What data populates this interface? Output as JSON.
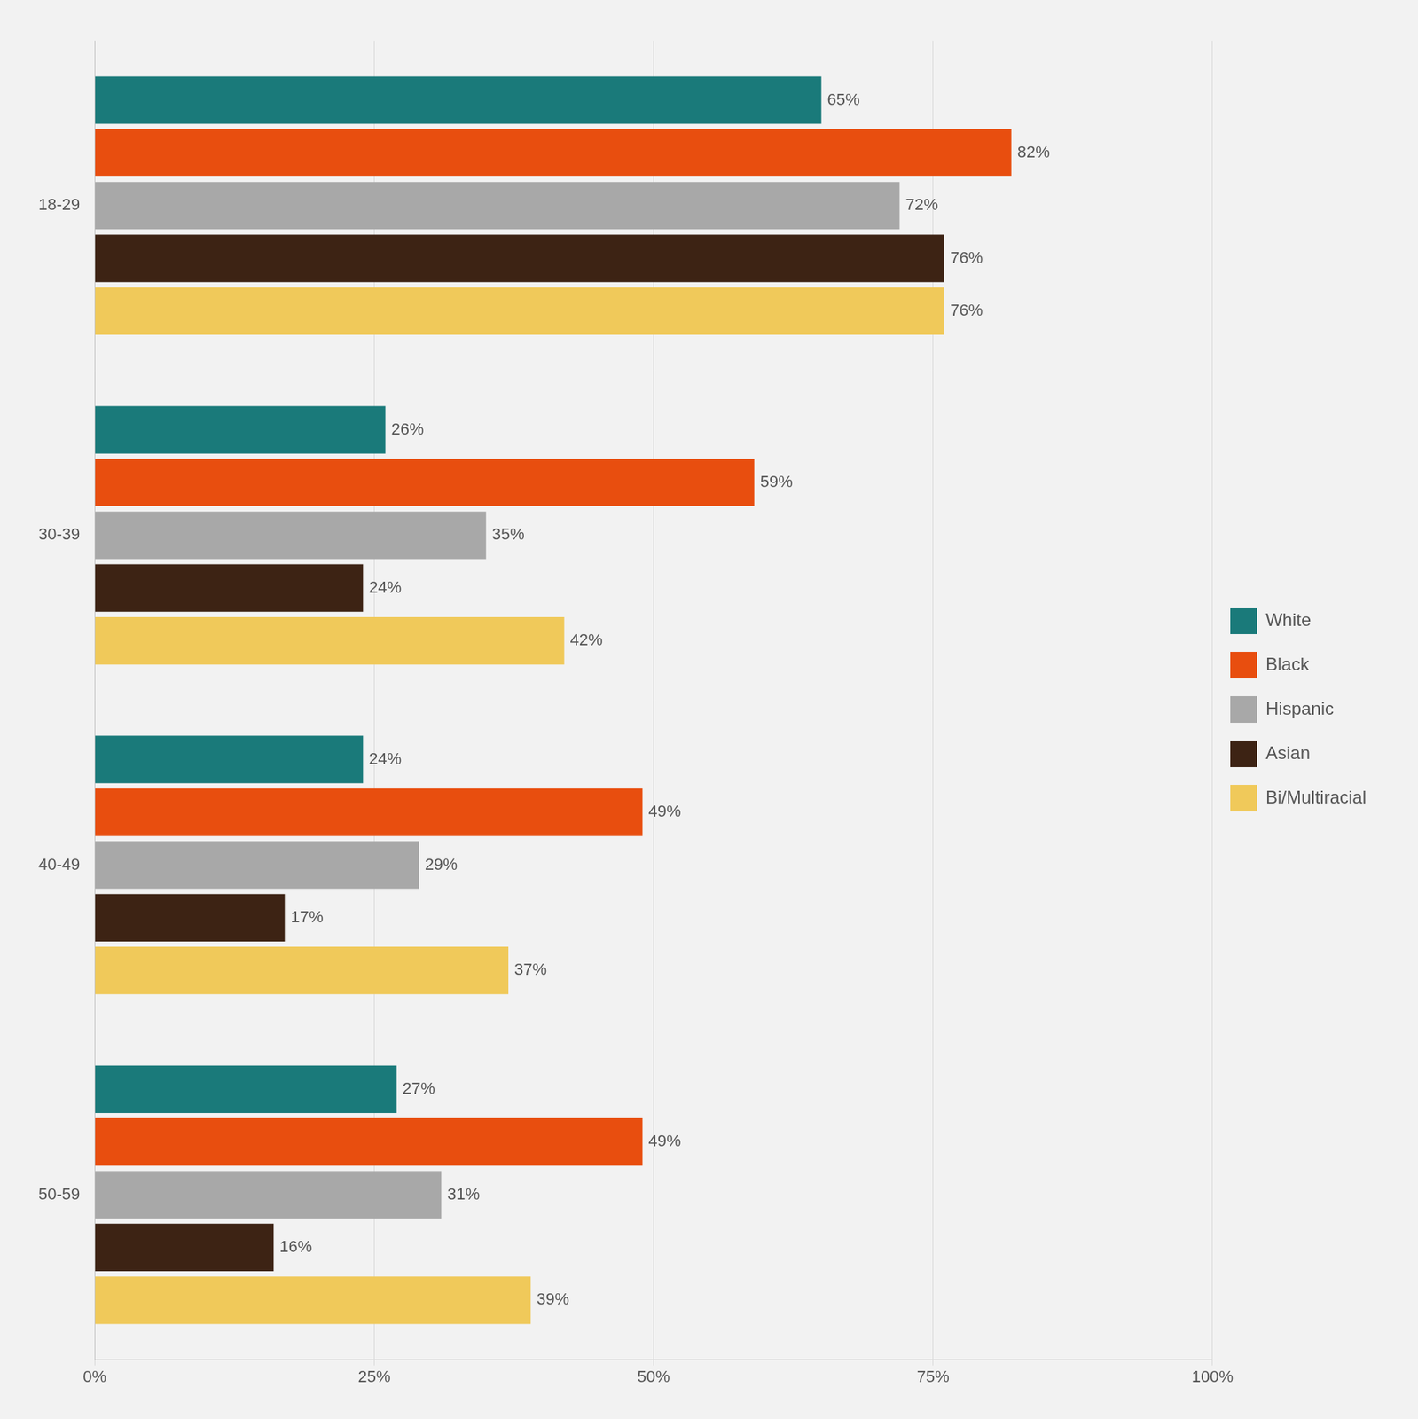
{
  "chart_data": {
    "type": "bar",
    "orientation": "horizontal",
    "categories": [
      "18-29",
      "30-39",
      "40-49",
      "50-59"
    ],
    "series": [
      {
        "name": "White",
        "color": "#1a7a7a",
        "values": [
          65,
          26,
          24,
          27
        ],
        "value_labels": [
          "65%",
          "26%",
          "24%",
          "27%"
        ]
      },
      {
        "name": "Black",
        "color": "#e84e0f",
        "values": [
          82,
          59,
          49,
          49
        ],
        "value_labels": [
          "82%",
          "59%",
          "49%",
          "49%"
        ]
      },
      {
        "name": "Hispanic",
        "color": "#a8a8a8",
        "values": [
          72,
          35,
          29,
          31
        ],
        "value_labels": [
          "72%",
          "35%",
          "29%",
          "31%"
        ]
      },
      {
        "name": "Asian",
        "color": "#3d2314",
        "values": [
          76,
          24,
          17,
          16
        ],
        "value_labels": [
          "76%",
          "24%",
          "17%",
          "16%"
        ]
      },
      {
        "name": "Bi/Multiracial",
        "color": "#f0c95a",
        "values": [
          76,
          42,
          37,
          39
        ],
        "value_labels": [
          "76%",
          "42%",
          "37%",
          "39%"
        ]
      }
    ],
    "xlim": [
      0,
      100
    ],
    "xticks": [
      {
        "value": 0,
        "label": "0%"
      },
      {
        "value": 25,
        "label": "25%"
      },
      {
        "value": 50,
        "label": "50%"
      },
      {
        "value": 75,
        "label": "75%"
      },
      {
        "value": 100,
        "label": "100%"
      }
    ],
    "grid": "x",
    "legend": "right",
    "data_labels": true
  }
}
